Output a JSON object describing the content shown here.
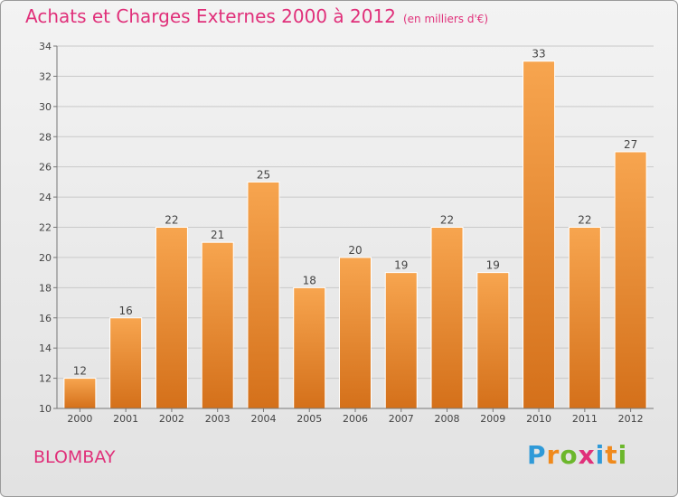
{
  "header": {
    "title": "Achats et Charges Externes 2000 à 2012",
    "subtitle": "(en milliers d'€)"
  },
  "footer": {
    "commune": "BLOMBAY",
    "logo_letters": [
      "P",
      "r",
      "o",
      "x",
      "i",
      "t",
      "i"
    ],
    "logo_colors": [
      "#2f9ad8",
      "#f08a1c",
      "#6cb72c",
      "#e0307a",
      "#2f9ad8",
      "#f08a1c",
      "#6cb72c"
    ]
  },
  "chart_data": {
    "type": "bar",
    "categories": [
      "2000",
      "2001",
      "2002",
      "2003",
      "2004",
      "2005",
      "2006",
      "2007",
      "2008",
      "2009",
      "2010",
      "2011",
      "2012"
    ],
    "values": [
      12,
      16,
      22,
      21,
      25,
      18,
      20,
      19,
      22,
      19,
      33,
      22,
      27
    ],
    "ylim": [
      10,
      34
    ],
    "yticks": [
      10,
      12,
      14,
      16,
      18,
      20,
      22,
      24,
      26,
      28,
      30,
      32,
      34
    ],
    "grid": true,
    "bar_color_top": "#f7a54f",
    "bar_color_bottom": "#d4701a"
  }
}
